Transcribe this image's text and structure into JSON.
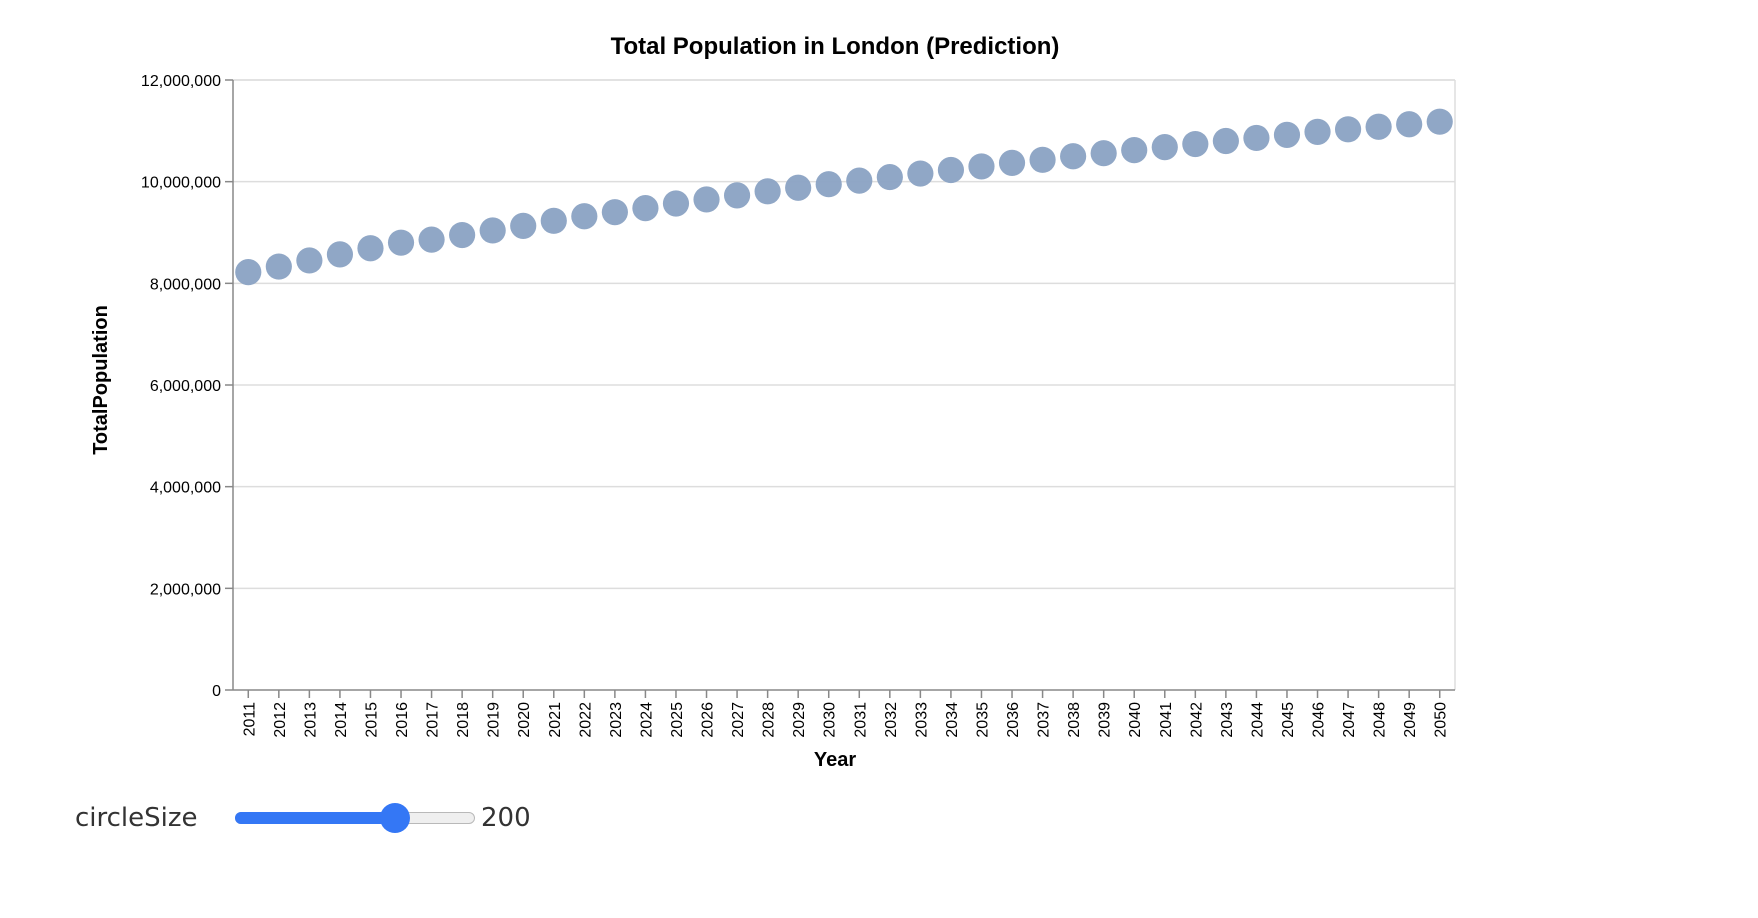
{
  "chart_data": {
    "type": "scatter",
    "title": "Total Population in London (Prediction)",
    "xlabel": "Year",
    "ylabel": "TotalPopulation",
    "ylim": [
      0,
      12000000
    ],
    "yticks": [
      0,
      2000000,
      4000000,
      6000000,
      8000000,
      10000000,
      12000000
    ],
    "ytick_labels": [
      "0",
      "2,000,000",
      "4,000,000",
      "6,000,000",
      "8,000,000",
      "10,000,000",
      "12,000,000"
    ],
    "grid": true,
    "color": "#8aa2c3",
    "x": [
      2011,
      2012,
      2013,
      2014,
      2015,
      2016,
      2017,
      2018,
      2019,
      2020,
      2021,
      2022,
      2023,
      2024,
      2025,
      2026,
      2027,
      2028,
      2029,
      2030,
      2031,
      2032,
      2033,
      2034,
      2035,
      2036,
      2037,
      2038,
      2039,
      2040,
      2041,
      2042,
      2043,
      2044,
      2045,
      2046,
      2047,
      2048,
      2049,
      2050
    ],
    "y": [
      8220000,
      8330000,
      8450000,
      8570000,
      8690000,
      8800000,
      8860000,
      8950000,
      9040000,
      9130000,
      9230000,
      9320000,
      9400000,
      9480000,
      9570000,
      9650000,
      9730000,
      9810000,
      9880000,
      9950000,
      10020000,
      10090000,
      10160000,
      10230000,
      10300000,
      10370000,
      10430000,
      10500000,
      10560000,
      10620000,
      10680000,
      10740000,
      10800000,
      10860000,
      10920000,
      10980000,
      11030000,
      11080000,
      11130000,
      11180000
    ]
  },
  "control": {
    "label": "circleSize",
    "value": "200",
    "min": 0,
    "max": 300,
    "accent_color": "#3477f5"
  }
}
